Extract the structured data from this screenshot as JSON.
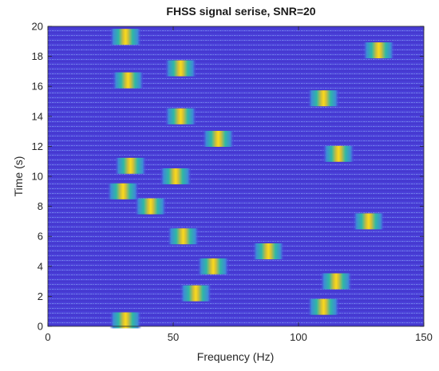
{
  "chart_data": {
    "type": "heatmap",
    "title": "FHSS signal serise, SNR=20",
    "xlabel": "Frequency (Hz)",
    "ylabel": "Time (s)",
    "xlim": [
      0,
      150
    ],
    "ylim": [
      0,
      20
    ],
    "xticks": [
      0,
      50,
      100,
      150
    ],
    "yticks": [
      0,
      2,
      4,
      6,
      8,
      10,
      12,
      14,
      16,
      18,
      20
    ],
    "grid": false,
    "colormap": "parula",
    "background_color": "#4a3fd8",
    "hops": [
      {
        "frequency": 31,
        "time": 0.4
      },
      {
        "frequency": 110,
        "time": 1.3
      },
      {
        "frequency": 59,
        "time": 2.2
      },
      {
        "frequency": 115,
        "time": 3.0
      },
      {
        "frequency": 66,
        "time": 4.0
      },
      {
        "frequency": 88,
        "time": 5.0
      },
      {
        "frequency": 54,
        "time": 6.0
      },
      {
        "frequency": 128,
        "time": 7.0
      },
      {
        "frequency": 41,
        "time": 8.0
      },
      {
        "frequency": 30,
        "time": 9.0
      },
      {
        "frequency": 51,
        "time": 10.0
      },
      {
        "frequency": 33,
        "time": 10.7
      },
      {
        "frequency": 116,
        "time": 11.5
      },
      {
        "frequency": 68,
        "time": 12.5
      },
      {
        "frequency": 53,
        "time": 14.0
      },
      {
        "frequency": 110,
        "time": 15.2
      },
      {
        "frequency": 32,
        "time": 16.4
      },
      {
        "frequency": 53,
        "time": 17.2
      },
      {
        "frequency": 31,
        "time": 19.3
      },
      {
        "frequency": 132,
        "time": 18.4
      }
    ]
  }
}
